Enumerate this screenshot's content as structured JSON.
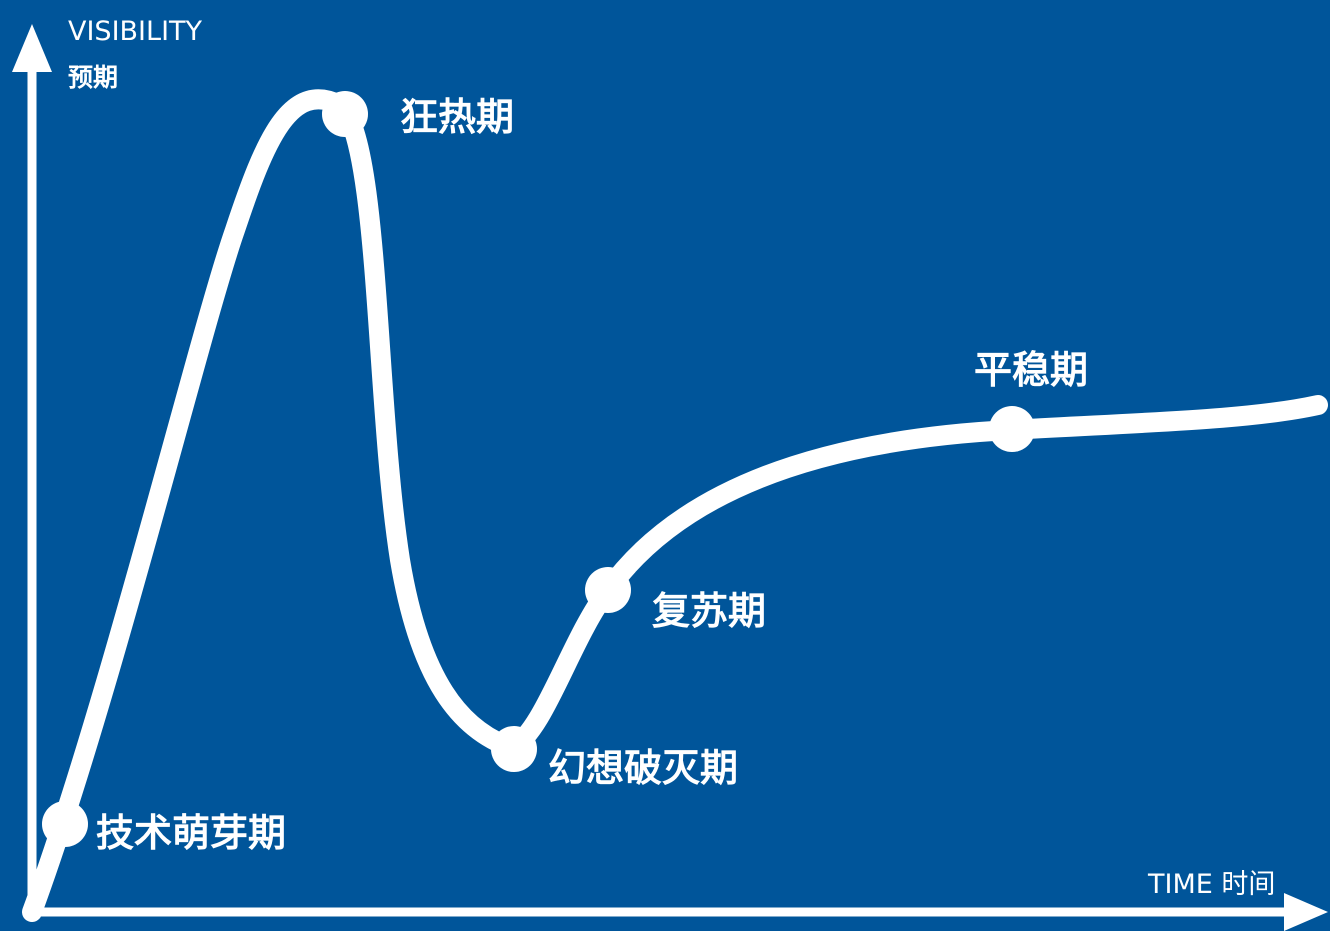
{
  "diagram": {
    "background_color": "#00559a",
    "line_color": "#ffffff",
    "y_axis": {
      "label_en": "VISIBILITY",
      "label_zh": "预期"
    },
    "x_axis": {
      "label": "TIME 时间"
    },
    "phases": [
      {
        "id": "trigger",
        "label": "技术萌芽期"
      },
      {
        "id": "peak",
        "label": "狂热期"
      },
      {
        "id": "trough",
        "label": "幻想破灭期"
      },
      {
        "id": "slope",
        "label": "复苏期"
      },
      {
        "id": "plateau",
        "label": "平稳期"
      }
    ]
  }
}
